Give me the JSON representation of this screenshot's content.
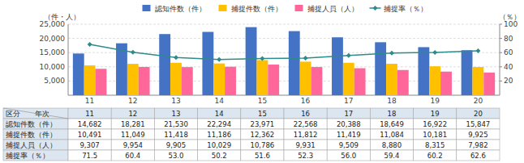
{
  "chart_data": {
    "type": "bar",
    "categories": [
      "11",
      "12",
      "13",
      "14",
      "15",
      "16",
      "17",
      "18",
      "19",
      "20"
    ],
    "series": [
      {
        "name": "認知件数（件）",
        "type": "bar",
        "color": "#4472C4",
        "values": [
          14682,
          18281,
          21530,
          22294,
          23971,
          22568,
          20388,
          18649,
          16922,
          15847
        ],
        "value_labels": [
          "14,682",
          "18,281",
          "21,530",
          "22,294",
          "23,971",
          "22,568",
          "20,388",
          "18,649",
          "16,922",
          "15,847"
        ]
      },
      {
        "name": "捕捉件数（件）",
        "type": "bar",
        "color": "#FFC000",
        "values": [
          10491,
          11049,
          11418,
          11186,
          12362,
          11812,
          11419,
          11084,
          10181,
          9925
        ],
        "value_labels": [
          "10,491",
          "11,049",
          "11,418",
          "11,186",
          "12,362",
          "11,812",
          "11,419",
          "11,084",
          "10,181",
          "9,925"
        ]
      },
      {
        "name": "捕捉人員（人）",
        "type": "bar",
        "color": "#FF6699",
        "values": [
          9307,
          9954,
          9905,
          10029,
          10786,
          9931,
          9509,
          8880,
          8315,
          7982
        ],
        "value_labels": [
          "9,307",
          "9,954",
          "9,905",
          "10,029",
          "10,786",
          "9,931",
          "9,509",
          "8,880",
          "8,315",
          "7,982"
        ]
      },
      {
        "name": "捕捉率（％）",
        "type": "line",
        "axis": "y2",
        "color": "#2E8B8B",
        "marker": "diamond",
        "line_style": "solid",
        "values": [
          71.5,
          60.4,
          53.0,
          50.2,
          51.6,
          52.3,
          56.0,
          59.4,
          60.2,
          62.6
        ],
        "value_labels": [
          "71.5",
          "60.4",
          "53.0",
          "50.2",
          "51.6",
          "52.3",
          "56.0",
          "59.4",
          "60.2",
          "62.6"
        ]
      }
    ],
    "ylabel": "（件・人）",
    "y2label": "（％）",
    "ylim": [
      0,
      25000
    ],
    "yticks": [
      {
        "value": 5000,
        "label": "5,000"
      },
      {
        "value": 10000,
        "label": "10,000"
      },
      {
        "value": 15000,
        "label": "15,000"
      },
      {
        "value": 20000,
        "label": "20,000"
      },
      {
        "value": 25000,
        "label": "25,000"
      }
    ],
    "y2lim": [
      0,
      100
    ],
    "y2ticks": [
      20,
      40,
      60,
      80,
      100
    ],
    "grid": true,
    "legend": "top",
    "table_header": "区分　　年次"
  }
}
